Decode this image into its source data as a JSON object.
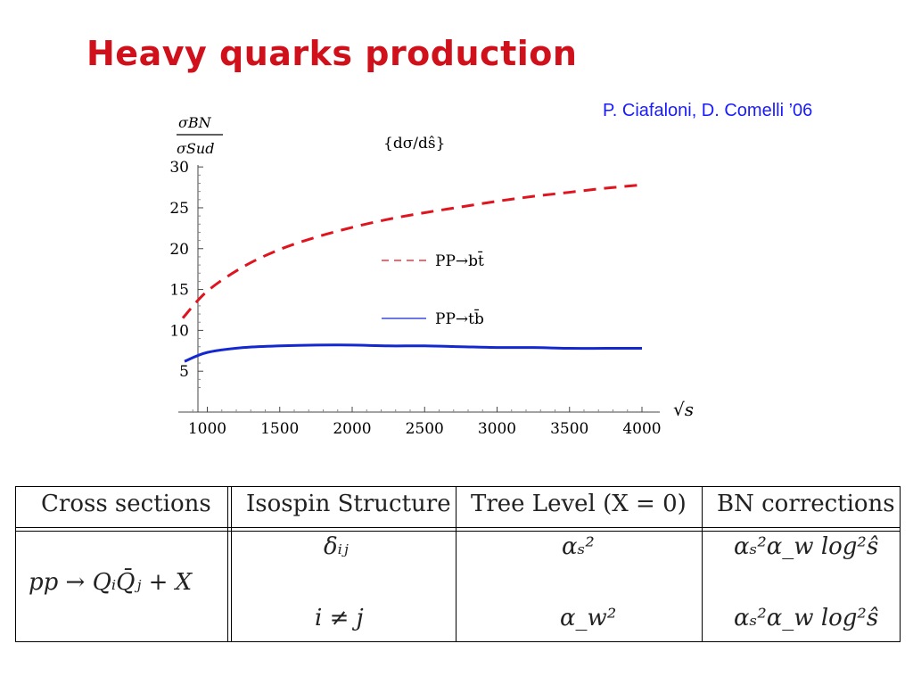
{
  "slide": {
    "title": "Heavy quarks production",
    "citation": "P. Ciafaloni, D. Comelli ’06"
  },
  "chart_data": {
    "type": "line",
    "ylabel_num": "σBN",
    "ylabel_den": "σSud",
    "annotation": "{dσ/dŝ}",
    "xlabel": "√s",
    "xlim": [
      800,
      4000
    ],
    "ylim": [
      0,
      31
    ],
    "xticks": [
      1000,
      1500,
      2000,
      2500,
      3000,
      3500,
      4000
    ],
    "yticks": [
      5,
      10,
      15,
      20,
      25,
      30
    ],
    "x": [
      800,
      1000,
      1250,
      1500,
      1750,
      2000,
      2250,
      2500,
      2750,
      3000,
      3250,
      3500,
      3750,
      4000
    ],
    "series": [
      {
        "name": "PP→bt̄",
        "color": "#e0141e",
        "style": "dashed",
        "values": [
          11.5,
          14.8,
          17.8,
          19.9,
          21.4,
          22.6,
          23.6,
          24.4,
          25.1,
          25.8,
          26.4,
          26.9,
          27.4,
          27.8
        ]
      },
      {
        "name": "PP→tb̄",
        "color": "#1428d2",
        "style": "solid",
        "values": [
          6.2,
          7.3,
          7.9,
          8.1,
          8.2,
          8.2,
          8.1,
          8.1,
          8.0,
          7.9,
          7.9,
          7.8,
          7.8,
          7.8
        ]
      }
    ]
  },
  "table": {
    "headers": [
      "Cross sections",
      "Isospin Structure",
      "Tree Level (X = 0)",
      "BN corrections"
    ],
    "process": "pp → QᵢQ̄ⱼ + X",
    "rows": [
      {
        "isospin": "δᵢⱼ",
        "tree": "αₛ²",
        "bn": "αₛ²α_w log²ŝ"
      },
      {
        "isospin": "i ≠ j",
        "tree": "α_w²",
        "bn": "αₛ²α_w log²ŝ"
      }
    ]
  }
}
